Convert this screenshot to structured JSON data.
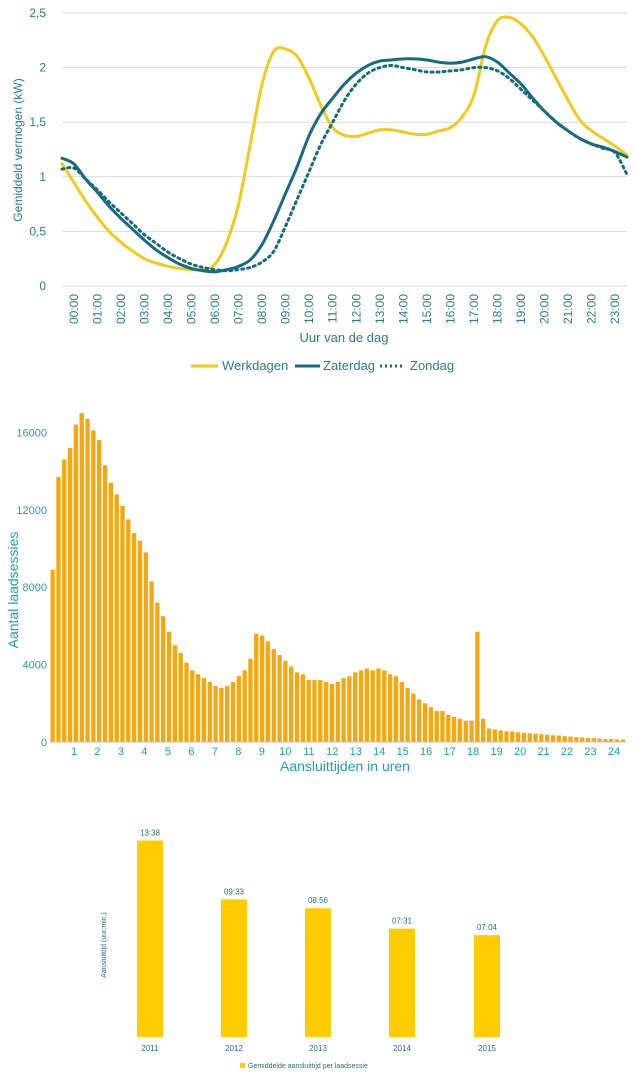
{
  "colors": {
    "werkdagen": "#f0cb1c",
    "zaterdag": "#156c80",
    "zondag": "#156c80",
    "axis_text_chart1": "#2a7d8e",
    "bars_chart2": "#f4a70e",
    "axis_text_chart2": "#1f9fb6",
    "bars_chart3": "#ffcc00",
    "axis_text_chart3": "#2a6e86"
  },
  "chart_data": [
    {
      "type": "line",
      "xlabel": "Uur van de dag",
      "ylabel": "Gemiddeld vermogen (kW)",
      "ylim": [
        0,
        2.5
      ],
      "yticks": [
        "0",
        "0,5",
        "1",
        "1,5",
        "2",
        "2,5"
      ],
      "yticks_values": [
        0,
        0.5,
        1,
        1.5,
        2,
        2.5
      ],
      "xticks": [
        "00:00",
        "01:00",
        "02:00",
        "03:00",
        "04:00",
        "05:00",
        "06:00",
        "07:00",
        "08:00",
        "09:00",
        "10:00",
        "11:00",
        "12:00",
        "13:00",
        "14:00",
        "15:00",
        "16:00",
        "17:00",
        "18:00",
        "19:00",
        "20:00",
        "21:00",
        "22:00",
        "23:00"
      ],
      "grid": true,
      "legend_position": "bottom",
      "x": [
        0,
        0.5,
        1,
        1.5,
        2,
        2.5,
        3,
        3.5,
        4,
        4.5,
        5,
        5.5,
        6,
        6.5,
        7,
        7.5,
        8,
        8.5,
        9,
        9.5,
        10,
        10.5,
        11,
        11.5,
        12,
        12.5,
        13,
        13.5,
        14,
        14.5,
        15,
        15.5,
        16,
        16.5,
        17,
        17.5,
        18,
        18.5,
        19,
        19.5,
        20,
        20.5,
        21,
        21.5,
        22,
        22.5,
        23,
        23.5,
        24
      ],
      "series": [
        {
          "name": "Werkdagen",
          "style": "solid",
          "color": "#f0cb1c",
          "values": [
            1.12,
            0.95,
            0.78,
            0.63,
            0.5,
            0.4,
            0.32,
            0.25,
            0.21,
            0.18,
            0.16,
            0.15,
            0.15,
            0.2,
            0.4,
            0.75,
            1.3,
            1.85,
            2.15,
            2.17,
            2.1,
            1.9,
            1.65,
            1.45,
            1.38,
            1.37,
            1.4,
            1.43,
            1.43,
            1.41,
            1.39,
            1.39,
            1.42,
            1.45,
            1.55,
            1.75,
            2.2,
            2.43,
            2.46,
            2.4,
            2.28,
            2.1,
            1.9,
            1.7,
            1.52,
            1.42,
            1.35,
            1.28,
            1.2
          ]
        },
        {
          "name": "Zaterdag",
          "style": "solid",
          "color": "#156c80",
          "values": [
            1.17,
            1.12,
            0.98,
            0.86,
            0.73,
            0.62,
            0.52,
            0.42,
            0.33,
            0.26,
            0.2,
            0.16,
            0.14,
            0.13,
            0.15,
            0.18,
            0.24,
            0.38,
            0.6,
            0.85,
            1.1,
            1.38,
            1.58,
            1.72,
            1.85,
            1.95,
            2.02,
            2.06,
            2.07,
            2.08,
            2.08,
            2.07,
            2.05,
            2.04,
            2.05,
            2.08,
            2.1,
            2.05,
            1.95,
            1.85,
            1.72,
            1.6,
            1.5,
            1.42,
            1.35,
            1.3,
            1.27,
            1.23,
            1.18
          ]
        },
        {
          "name": "Zondag",
          "style": "dotted",
          "color": "#156c80",
          "values": [
            1.07,
            1.08,
            0.98,
            0.88,
            0.77,
            0.67,
            0.57,
            0.47,
            0.39,
            0.31,
            0.25,
            0.2,
            0.17,
            0.15,
            0.14,
            0.15,
            0.17,
            0.22,
            0.32,
            0.55,
            0.8,
            1.05,
            1.3,
            1.5,
            1.7,
            1.85,
            1.95,
            2.0,
            2.02,
            2.0,
            1.98,
            1.96,
            1.96,
            1.97,
            1.98,
            2.0,
            2.0,
            1.97,
            1.9,
            1.8,
            1.7,
            1.6,
            1.5,
            1.42,
            1.35,
            1.3,
            1.26,
            1.22,
            1.02
          ]
        }
      ]
    },
    {
      "type": "bar",
      "xlabel": "Aansluittijden in uren",
      "ylabel": "Aantal laadsessies",
      "ylim": [
        0,
        17000
      ],
      "yticks": [
        "0",
        "4000",
        "8000",
        "12000",
        "16000"
      ],
      "yticks_values": [
        0,
        4000,
        8000,
        12000,
        16000
      ],
      "xticks": [
        "1",
        "2",
        "3",
        "4",
        "5",
        "6",
        "7",
        "8",
        "9",
        "10",
        "11",
        "12",
        "13",
        "14",
        "15",
        "16",
        "17",
        "18",
        "19",
        "20",
        "21",
        "22",
        "23",
        "24"
      ],
      "grid": false,
      "values": [
        8900,
        13700,
        14600,
        15200,
        16400,
        17000,
        16700,
        16100,
        15600,
        14300,
        13400,
        12800,
        12200,
        11500,
        10800,
        10400,
        9800,
        8300,
        7200,
        6500,
        5700,
        5000,
        4600,
        4100,
        3700,
        3500,
        3300,
        3100,
        2900,
        2800,
        2900,
        3100,
        3400,
        3700,
        4300,
        5600,
        5500,
        5200,
        4800,
        4500,
        4200,
        3900,
        3600,
        3500,
        3200,
        3200,
        3200,
        3100,
        3000,
        3100,
        3300,
        3400,
        3600,
        3700,
        3800,
        3700,
        3800,
        3700,
        3500,
        3400,
        3100,
        2800,
        2500,
        2200,
        2000,
        1800,
        1600,
        1600,
        1400,
        1300,
        1200,
        1100,
        1100,
        5700,
        1200,
        700,
        650,
        600,
        550,
        550,
        500,
        480,
        450,
        420,
        400,
        380,
        350,
        330,
        300,
        280,
        250,
        230,
        210,
        200,
        180,
        160,
        150,
        140,
        130
      ]
    },
    {
      "type": "bar",
      "ylabel": "Aansluittijd (uur:min.)",
      "categories": [
        "2011",
        "2012",
        "2013",
        "2014",
        "2015"
      ],
      "values": [
        13.633,
        9.55,
        8.933,
        7.517,
        7.067
      ],
      "data_labels": [
        "13:38",
        "09:33",
        "08:56",
        "07:31",
        "07:04"
      ],
      "legend": "Gemiddelde aansluittijd per laadsessie",
      "legend_position": "bottom",
      "ylim": [
        0,
        14.5
      ],
      "grid": false
    }
  ]
}
